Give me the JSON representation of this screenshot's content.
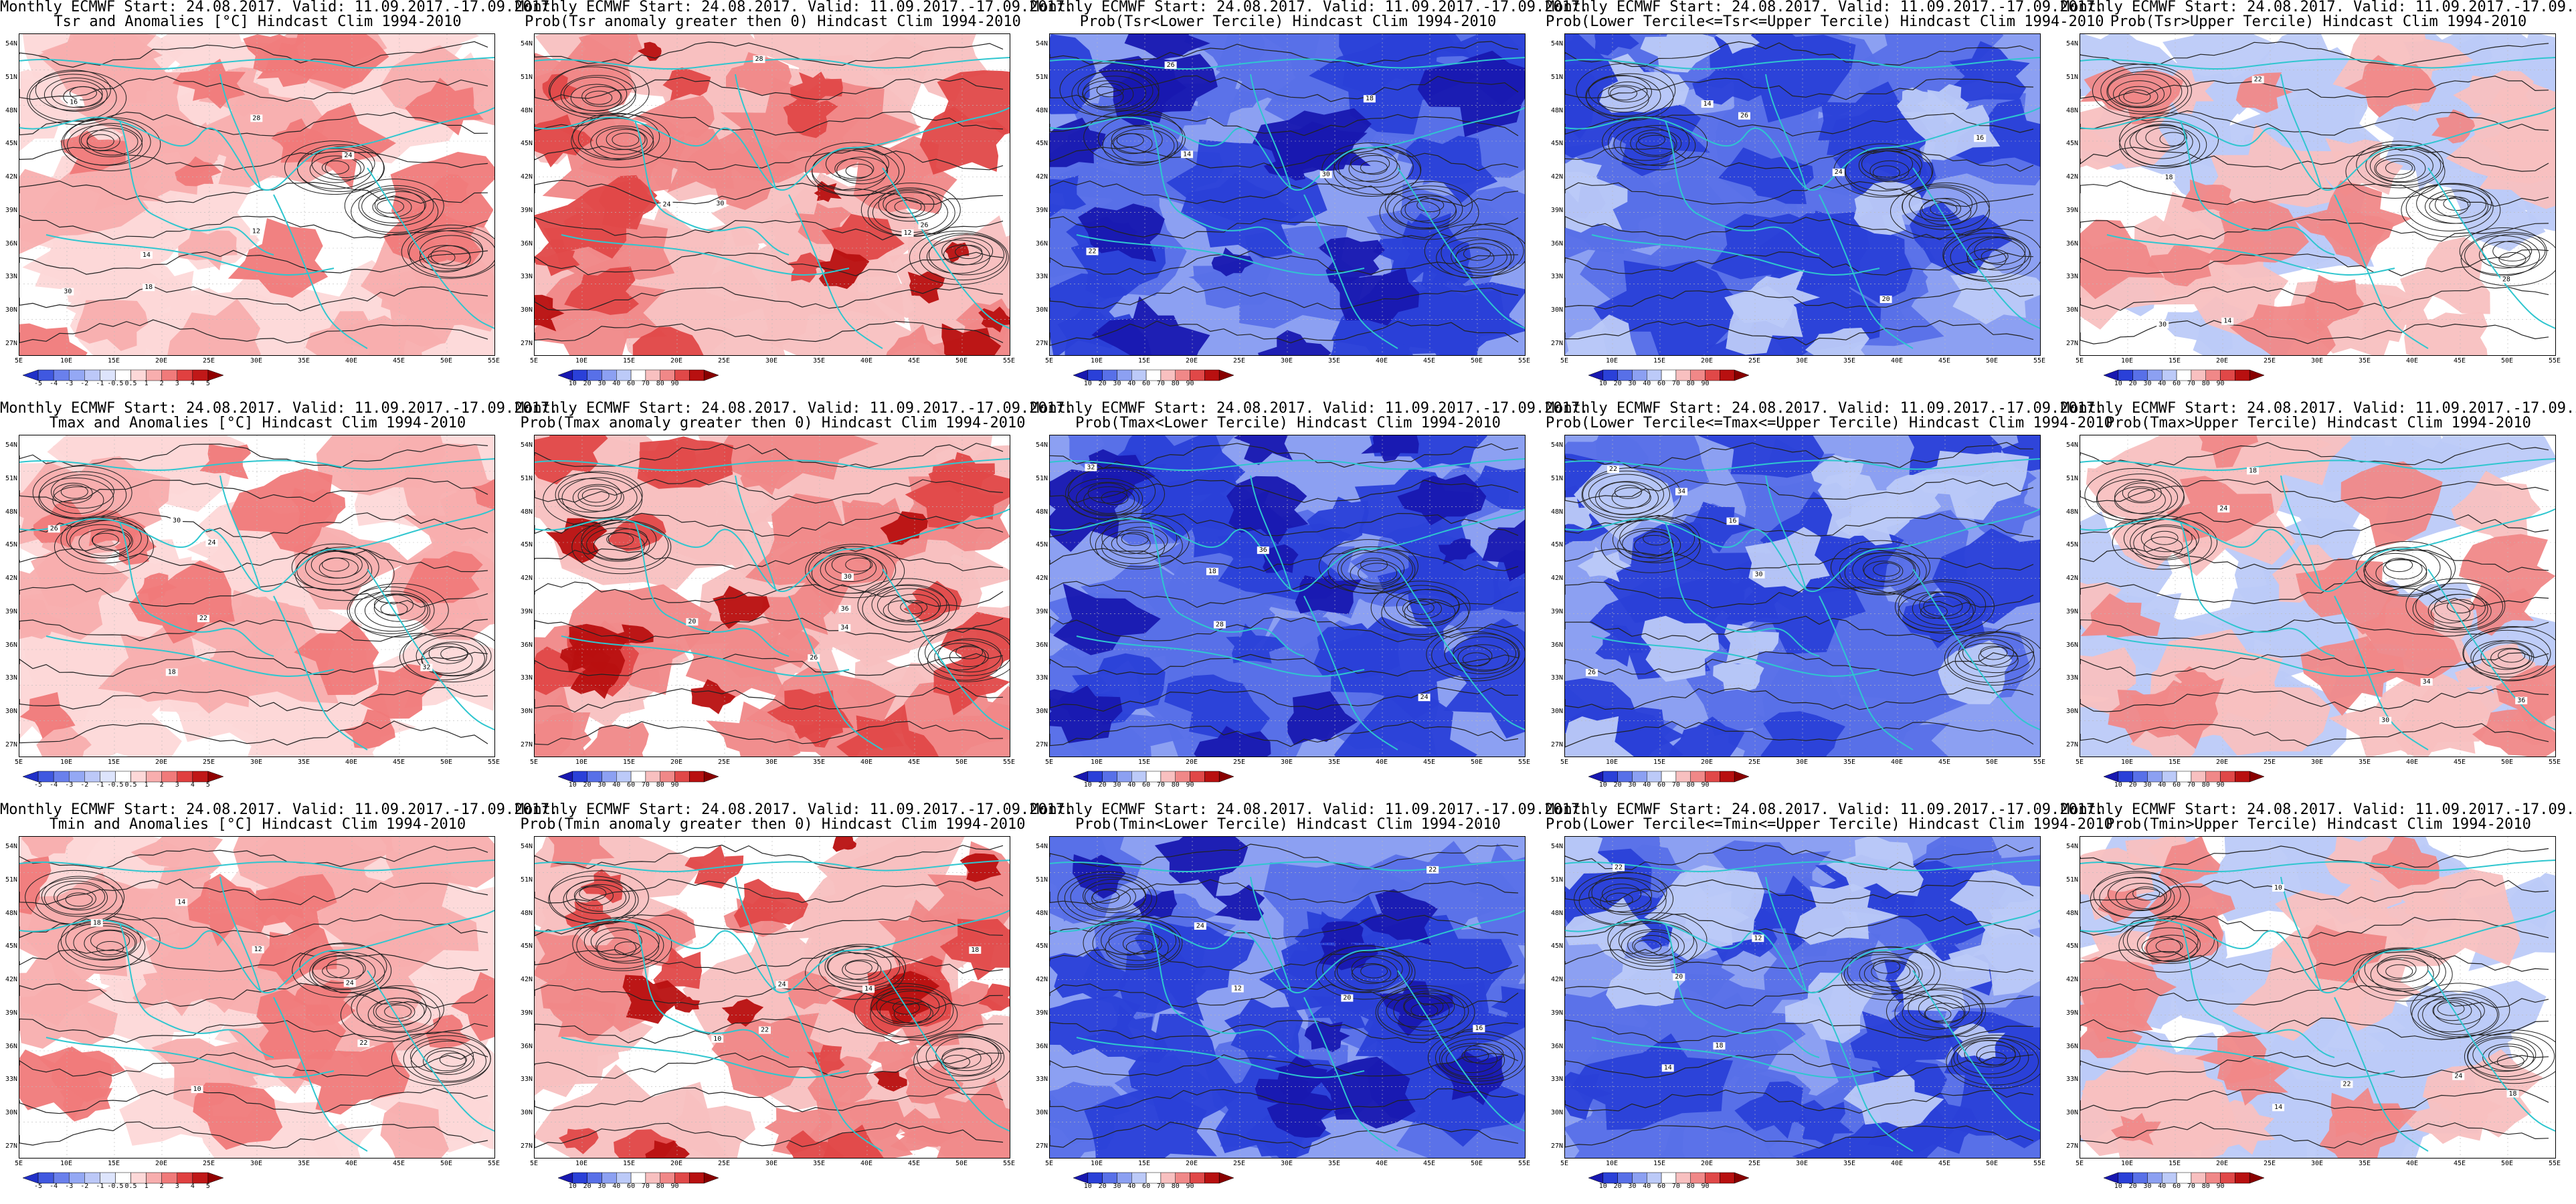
{
  "header": {
    "line1": "Monthly ECMWF Start: 24.08.2017. Valid: 11.09.2017.-17.09.2017."
  },
  "axes": {
    "lat_labels": [
      "54N",
      "51N",
      "48N",
      "45N",
      "42N",
      "39N",
      "36N",
      "33N",
      "30N",
      "27N"
    ],
    "lon_labels": [
      "5E",
      "10E",
      "15E",
      "20E",
      "25E",
      "30E",
      "35E",
      "40E",
      "45E",
      "50E",
      "55E"
    ]
  },
  "colorbars": {
    "anomaly": [
      "-5",
      "-4",
      "-3",
      "-2",
      "-1",
      "-0.5",
      "0.5",
      "1",
      "2",
      "3",
      "4",
      "5"
    ],
    "probability": [
      "10",
      "20",
      "30",
      "40",
      "60",
      "70",
      "80",
      "90"
    ]
  },
  "colors": {
    "contour": "#222222",
    "coast": "#2fc6cf",
    "anomaly_scale": [
      "#2030c8",
      "#4058e0",
      "#6a80ec",
      "#94a8f4",
      "#bcc8f8",
      "#dde4fc",
      "#ffffff",
      "#fdd8d8",
      "#f8aeae",
      "#f07a7a",
      "#e04040",
      "#c01818",
      "#900000"
    ],
    "prob_scale": [
      "#1818b0",
      "#2a40d8",
      "#5870e8",
      "#8ca0f2",
      "#bccaf8",
      "#ffffff",
      "#f8c0c0",
      "#f08888",
      "#e04848",
      "#b81010",
      "#880000"
    ]
  },
  "panels": [
    {
      "title2": "Tsr and Anomalies [°C] Hindcast Clim 1994-2010",
      "type": "anomaly",
      "pattern": "warm",
      "contour_labels": [
        "14",
        "18",
        "24",
        "28",
        "30",
        "16",
        "12"
      ]
    },
    {
      "title2": "Prob(Tsr anomaly greater then 0) Hindcast Clim 1994-2010",
      "type": "probability",
      "pattern": "warmprob",
      "contour_labels": [
        "24",
        "28",
        "30",
        "26",
        "12"
      ]
    },
    {
      "title2": "Prob(Tsr<Lower Tercile) Hindcast Clim 1994-2010",
      "type": "probability",
      "pattern": "cold",
      "contour_labels": [
        "14",
        "18",
        "22",
        "26",
        "30"
      ]
    },
    {
      "title2": "Prob(Lower Tercile<=Tsr<=Upper Tercile) Hindcast Clim 1994-2010",
      "type": "probability",
      "pattern": "mid",
      "contour_labels": [
        "14",
        "16",
        "20",
        "24",
        "26"
      ]
    },
    {
      "title2": "Prob(Tsr>Upper Tercile) Hindcast Clim 1994-2010",
      "type": "probability",
      "pattern": "upper",
      "contour_labels": [
        "14",
        "18",
        "22",
        "28",
        "30"
      ]
    },
    {
      "title2": "Tmax and Anomalies [°C] Hindcast Clim 1994-2010",
      "type": "anomaly",
      "pattern": "warm",
      "contour_labels": [
        "18",
        "22",
        "26",
        "30",
        "32",
        "24"
      ]
    },
    {
      "title2": "Prob(Tmax anomaly greater then 0) Hindcast Clim 1994-2010",
      "type": "probability",
      "pattern": "warmprob",
      "contour_labels": [
        "20",
        "26",
        "30",
        "34",
        "36"
      ]
    },
    {
      "title2": "Prob(Tmax<Lower Tercile) Hindcast Clim 1994-2010",
      "type": "probability",
      "pattern": "cold",
      "contour_labels": [
        "18",
        "24",
        "28",
        "32",
        "36"
      ]
    },
    {
      "title2": "Prob(Lower Tercile<=Tmax<=Upper Tercile) Hindcast Clim 1994-2010",
      "type": "probability",
      "pattern": "mid",
      "contour_labels": [
        "16",
        "22",
        "26",
        "30",
        "34"
      ]
    },
    {
      "title2": "Prob(Tmax>Upper Tercile) Hindcast Clim 1994-2010",
      "type": "probability",
      "pattern": "upper",
      "contour_labels": [
        "18",
        "24",
        "30",
        "34",
        "36"
      ]
    },
    {
      "title2": "Tmin and Anomalies [°C] Hindcast Clim 1994-2010",
      "type": "anomaly",
      "pattern": "warmlight",
      "contour_labels": [
        "10",
        "12",
        "14",
        "18",
        "22",
        "24"
      ]
    },
    {
      "title2": "Prob(Tmin anomaly greater then 0) Hindcast Clim 1994-2010",
      "type": "probability",
      "pattern": "warmprob",
      "contour_labels": [
        "10",
        "14",
        "18",
        "22",
        "24"
      ]
    },
    {
      "title2": "Prob(Tmin<Lower Tercile) Hindcast Clim 1994-2010",
      "type": "probability",
      "pattern": "cold",
      "contour_labels": [
        "12",
        "16",
        "20",
        "22",
        "24"
      ]
    },
    {
      "title2": "Prob(Lower Tercile<=Tmin<=Upper Tercile) Hindcast Clim 1994-2010",
      "type": "probability",
      "pattern": "mid",
      "contour_labels": [
        "12",
        "14",
        "18",
        "20",
        "22"
      ]
    },
    {
      "title2": "Prob(Tmin>Upper Tercile) Hindcast Clim 1994-2010",
      "type": "probability",
      "pattern": "upper",
      "contour_labels": [
        "10",
        "14",
        "18",
        "22",
        "24"
      ]
    }
  ]
}
